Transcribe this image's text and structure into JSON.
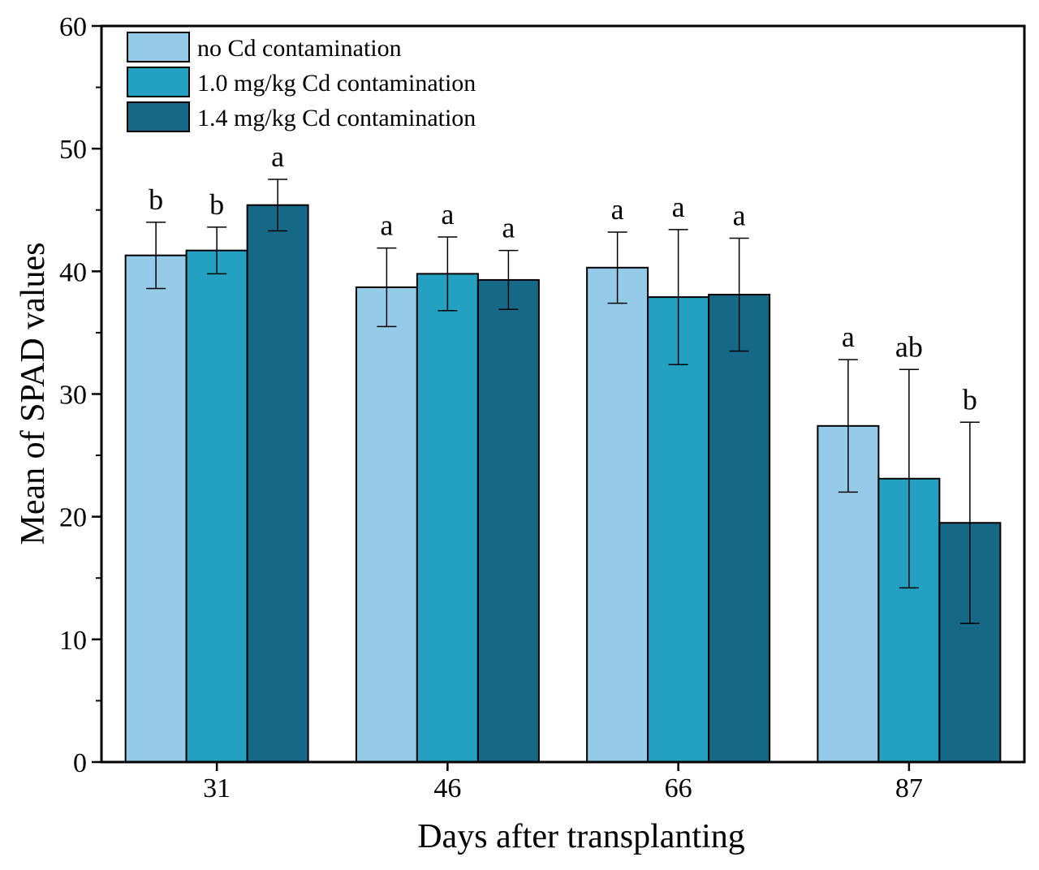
{
  "chart_data": {
    "type": "bar",
    "xlabel": "Days after transplanting",
    "ylabel": "Mean of SPAD values",
    "categories": [
      "31",
      "46",
      "66",
      "87"
    ],
    "ylim": [
      0,
      60
    ],
    "yticks": [
      0,
      10,
      20,
      30,
      40,
      50,
      60
    ],
    "grid": false,
    "legend_position": "top-left",
    "series": [
      {
        "name": "no Cd contamination",
        "color": "#93cbe8",
        "values": [
          41.3,
          38.7,
          40.3,
          27.4
        ],
        "errors": [
          2.7,
          3.2,
          2.9,
          5.4
        ],
        "labels": [
          "b",
          "a",
          "a",
          "a"
        ]
      },
      {
        "name": "1.0 mg/kg Cd contamination",
        "color": "#24a0c2",
        "values": [
          41.7,
          39.8,
          37.9,
          23.1
        ],
        "errors": [
          1.9,
          3.0,
          5.5,
          8.9
        ],
        "labels": [
          "b",
          "a",
          "a",
          "ab"
        ]
      },
      {
        "name": "1.4 mg/kg Cd contamination",
        "color": "#156886",
        "values": [
          45.4,
          39.3,
          38.1,
          19.5
        ],
        "errors": [
          2.1,
          2.4,
          4.6,
          8.2
        ],
        "labels": [
          "a",
          "a",
          "a",
          "b"
        ]
      }
    ]
  }
}
